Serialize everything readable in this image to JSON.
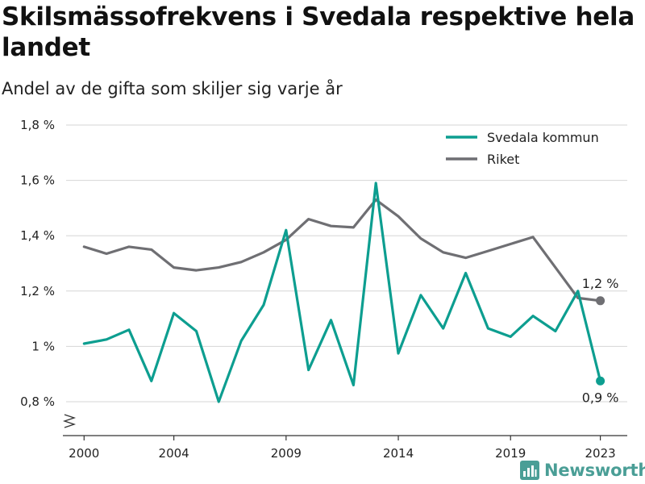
{
  "title": "Skilsmässofrekvens i Svedala respektive hela landet",
  "subtitle": "Andel av de gifta som skiljer sig varje år",
  "brand": {
    "name": "Newsworthy",
    "color": "#4a9e96"
  },
  "chart_data": {
    "type": "line",
    "x": [
      2000,
      2001,
      2002,
      2003,
      2004,
      2005,
      2006,
      2007,
      2008,
      2009,
      2010,
      2011,
      2012,
      2013,
      2014,
      2015,
      2016,
      2017,
      2018,
      2019,
      2020,
      2021,
      2022,
      2023
    ],
    "x_ticks": [
      2000,
      2004,
      2009,
      2014,
      2019,
      2023
    ],
    "y_ticks": [
      {
        "value": 0.8,
        "label": "0,8 %"
      },
      {
        "value": 1.0,
        "label": "1 %"
      },
      {
        "value": 1.2,
        "label": "1,2 %"
      },
      {
        "value": 1.4,
        "label": "1,4 %"
      },
      {
        "value": 1.6,
        "label": "1,6 %"
      },
      {
        "value": 1.8,
        "label": "1,8 %"
      }
    ],
    "xlim": [
      1999.2,
      2024.2
    ],
    "ylim": [
      0.8,
      1.8
    ],
    "grid": true,
    "axis_break": true,
    "legend_position": "top-right",
    "series": [
      {
        "name": "Svedala kommun",
        "color": "#0d9e90",
        "values": [
          1.01,
          1.025,
          1.06,
          0.875,
          1.12,
          1.055,
          0.8,
          1.02,
          1.15,
          1.42,
          0.915,
          1.095,
          0.86,
          1.59,
          0.975,
          1.185,
          1.065,
          1.265,
          1.065,
          1.035,
          1.11,
          1.055,
          1.2,
          0.875
        ],
        "end_label": "0,9 %"
      },
      {
        "name": "Riket",
        "color": "#6f6f73",
        "values": [
          1.36,
          1.335,
          1.36,
          1.35,
          1.285,
          1.275,
          1.285,
          1.305,
          1.34,
          1.385,
          1.46,
          1.435,
          1.43,
          1.53,
          1.47,
          1.39,
          1.34,
          1.32,
          1.345,
          1.37,
          1.395,
          1.285,
          1.175,
          1.165
        ],
        "end_label": "1,2 %"
      }
    ]
  }
}
